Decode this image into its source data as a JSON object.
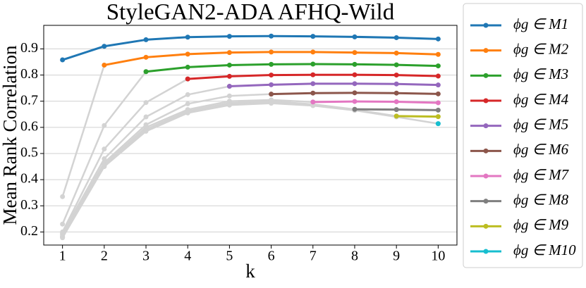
{
  "chart_data": {
    "type": "line",
    "title": "StyleGAN2-ADA AFHQ-Wild",
    "xlabel": "k",
    "ylabel": "Mean Rank Correlation",
    "x": [
      1,
      2,
      3,
      4,
      5,
      6,
      7,
      8,
      9,
      10
    ],
    "xlim": [
      0.55,
      10.45
    ],
    "xticks": [
      1,
      2,
      3,
      4,
      5,
      6,
      7,
      8,
      9,
      10
    ],
    "ylim": [
      0.15,
      0.99
    ],
    "yticks": [
      0.2,
      0.3,
      0.4,
      0.5,
      0.6,
      0.7,
      0.8,
      0.9
    ],
    "grid": true,
    "legend": "outside-right",
    "background_series": [
      {
        "color": "#d3d3d3",
        "values": [
          0.335,
          0.838,
          null,
          null,
          null,
          null,
          null,
          null,
          null,
          null
        ]
      },
      {
        "color": "#d3d3d3",
        "values": [
          0.23,
          0.607,
          0.813,
          null,
          null,
          null,
          null,
          null,
          null,
          null
        ]
      },
      {
        "color": "#d3d3d3",
        "values": [
          0.2,
          0.517,
          0.695,
          0.785,
          null,
          null,
          null,
          null,
          null,
          null
        ]
      },
      {
        "color": "#d3d3d3",
        "values": [
          0.195,
          0.48,
          0.64,
          0.725,
          0.757,
          null,
          null,
          null,
          null,
          null
        ]
      },
      {
        "color": "#d3d3d3",
        "values": [
          0.19,
          0.465,
          0.61,
          0.69,
          0.72,
          0.727,
          null,
          null,
          null,
          null
        ]
      },
      {
        "color": "#d3d3d3",
        "values": [
          0.185,
          0.458,
          0.6,
          0.668,
          0.7,
          0.705,
          0.697,
          null,
          null,
          null
        ]
      },
      {
        "color": "#d3d3d3",
        "values": [
          0.182,
          0.455,
          0.592,
          0.662,
          0.693,
          0.7,
          0.688,
          0.669,
          null,
          null
        ]
      },
      {
        "color": "#d3d3d3",
        "values": [
          0.18,
          0.452,
          0.588,
          0.658,
          0.688,
          0.695,
          0.685,
          0.668,
          0.643,
          null
        ]
      },
      {
        "color": "#d3d3d3",
        "values": [
          0.178,
          0.45,
          0.585,
          0.655,
          0.685,
          0.692,
          0.683,
          0.665,
          0.64,
          0.614
        ]
      }
    ],
    "series": [
      {
        "name": "ϕg ∈ M1",
        "color": "#1f77b4",
        "values": [
          0.858,
          0.91,
          0.935,
          0.945,
          0.948,
          0.949,
          0.948,
          0.946,
          0.943,
          0.938
        ]
      },
      {
        "name": "ϕg ∈ M2",
        "color": "#ff7f0e",
        "values": [
          null,
          0.838,
          0.868,
          0.88,
          0.886,
          0.888,
          0.888,
          0.886,
          0.884,
          0.879
        ]
      },
      {
        "name": "ϕg ∈ M3",
        "color": "#2ca02c",
        "values": [
          null,
          null,
          0.813,
          0.83,
          0.838,
          0.841,
          0.842,
          0.841,
          0.839,
          0.835
        ]
      },
      {
        "name": "ϕg ∈ M4",
        "color": "#d62728",
        "values": [
          null,
          null,
          null,
          0.785,
          0.795,
          0.8,
          0.801,
          0.801,
          0.8,
          0.796
        ]
      },
      {
        "name": "ϕg ∈ M5",
        "color": "#9467bd",
        "values": [
          null,
          null,
          null,
          null,
          0.757,
          0.763,
          0.767,
          0.767,
          0.766,
          0.762
        ]
      },
      {
        "name": "ϕg ∈ M6",
        "color": "#8c564b",
        "values": [
          null,
          null,
          null,
          null,
          null,
          0.727,
          0.731,
          0.732,
          0.731,
          0.728
        ]
      },
      {
        "name": "ϕg ∈ M7",
        "color": "#e377c2",
        "values": [
          null,
          null,
          null,
          null,
          null,
          null,
          0.697,
          0.699,
          0.698,
          0.694
        ]
      },
      {
        "name": "ϕg ∈ M8",
        "color": "#7f7f7f",
        "values": [
          null,
          null,
          null,
          null,
          null,
          null,
          null,
          0.669,
          0.668,
          0.666
        ]
      },
      {
        "name": "ϕg ∈ M9",
        "color": "#bcbd22",
        "values": [
          null,
          null,
          null,
          null,
          null,
          null,
          null,
          null,
          0.643,
          0.641
        ]
      },
      {
        "name": "ϕg ∈ M10",
        "color": "#17becf",
        "values": [
          null,
          null,
          null,
          null,
          null,
          null,
          null,
          null,
          null,
          0.614
        ]
      }
    ]
  }
}
